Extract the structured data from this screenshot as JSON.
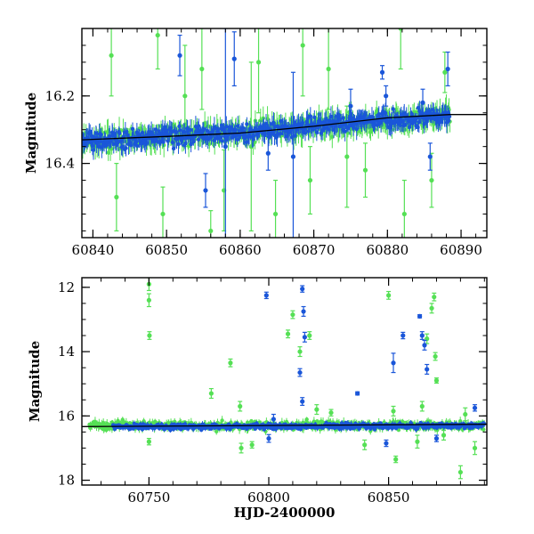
{
  "chart_data": [
    {
      "type": "scatter",
      "title": "",
      "xlabel": "",
      "ylabel": "Magnitude",
      "xlim": [
        60838.5,
        60893.5
      ],
      "ylim": [
        16.62,
        16.0
      ],
      "y_inverted": true,
      "x_ticks": [
        60840,
        60850,
        60860,
        60870,
        60880,
        60890
      ],
      "x_tick_labels": [
        "60840",
        "60850",
        "60860",
        "60870",
        "60880",
        "60890"
      ],
      "y_ticks": [
        16.2,
        16.4
      ],
      "y_tick_labels": [
        "16.2",
        "16.4"
      ],
      "grid": false,
      "series": [
        {
          "color": "#55e055",
          "marker": "dot-with-errorbar",
          "baseline": [
            [
              60838.5,
              16.335
            ],
            [
              60850,
              16.32
            ],
            [
              60860,
              16.31
            ],
            [
              60870,
              16.29
            ],
            [
              60880,
              16.27
            ],
            [
              60888.5,
              16.26
            ]
          ],
          "x_range": [
            60838.5,
            60888.5
          ],
          "spread": 0.03,
          "outliers": [
            {
              "x": 60842.5,
              "y": 16.08,
              "err": 0.12
            },
            {
              "x": 60843.2,
              "y": 16.5,
              "err": 0.1
            },
            {
              "x": 60848.8,
              "y": 16.02,
              "err": 0.1
            },
            {
              "x": 60849.5,
              "y": 16.55,
              "err": 0.08
            },
            {
              "x": 60852.5,
              "y": 16.2,
              "err": 0.15
            },
            {
              "x": 60854.8,
              "y": 16.12,
              "err": 0.12
            },
            {
              "x": 60856.0,
              "y": 16.6,
              "err": 0.06
            },
            {
              "x": 60857.8,
              "y": 16.48,
              "err": 0.12
            },
            {
              "x": 60861.5,
              "y": 16.35,
              "err": 0.25
            },
            {
              "x": 60862.5,
              "y": 16.1,
              "err": 0.15
            },
            {
              "x": 60864.8,
              "y": 16.55,
              "err": 0.1
            },
            {
              "x": 60868.5,
              "y": 16.05,
              "err": 0.15
            },
            {
              "x": 60869.5,
              "y": 16.45,
              "err": 0.1
            },
            {
              "x": 60872.0,
              "y": 16.12,
              "err": 0.12
            },
            {
              "x": 60874.5,
              "y": 16.38,
              "err": 0.15
            },
            {
              "x": 60877.0,
              "y": 16.42,
              "err": 0.08
            },
            {
              "x": 60881.8,
              "y": 16.0,
              "err": 0.12
            },
            {
              "x": 60882.3,
              "y": 16.55,
              "err": 0.1
            },
            {
              "x": 60886.0,
              "y": 16.45,
              "err": 0.08
            },
            {
              "x": 60887.8,
              "y": 16.13,
              "err": 0.06
            }
          ]
        },
        {
          "color": "#1a56d9",
          "marker": "dot-with-errorbar",
          "baseline": [
            [
              60838.5,
              16.335
            ],
            [
              60850,
              16.32
            ],
            [
              60860,
              16.31
            ],
            [
              60870,
              16.29
            ],
            [
              60880,
              16.27
            ],
            [
              60888.5,
              16.26
            ]
          ],
          "x_range": [
            60838.5,
            60888.5
          ],
          "spread": 0.025,
          "outliers": [
            {
              "x": 60851.8,
              "y": 16.08,
              "err": 0.06
            },
            {
              "x": 60855.3,
              "y": 16.48,
              "err": 0.05
            },
            {
              "x": 60858.0,
              "y": 16.35,
              "err": 0.35
            },
            {
              "x": 60859.2,
              "y": 16.09,
              "err": 0.08
            },
            {
              "x": 60863.8,
              "y": 16.37,
              "err": 0.05
            },
            {
              "x": 60867.2,
              "y": 16.38,
              "err": 0.25
            },
            {
              "x": 60875.0,
              "y": 16.23,
              "err": 0.05
            },
            {
              "x": 60879.3,
              "y": 16.13,
              "err": 0.02
            },
            {
              "x": 60879.8,
              "y": 16.2,
              "err": 0.03
            },
            {
              "x": 60884.8,
              "y": 16.22,
              "err": 0.04
            },
            {
              "x": 60885.8,
              "y": 16.38,
              "err": 0.04
            },
            {
              "x": 60888.2,
              "y": 16.12,
              "err": 0.05
            }
          ]
        }
      ],
      "trend_line": {
        "color": "#000000",
        "points": [
          [
            60838.5,
            16.33
          ],
          [
            60850,
            16.32
          ],
          [
            60860,
            16.31
          ],
          [
            60870,
            16.29
          ],
          [
            60880,
            16.265
          ],
          [
            60888.5,
            16.255
          ],
          [
            60893.5,
            16.255
          ]
        ]
      }
    },
    {
      "type": "scatter",
      "title": "",
      "xlabel": "HJD-2400000",
      "ylabel": "Magnitude",
      "xlim": [
        60722,
        60891
      ],
      "ylim": [
        18.15,
        11.7
      ],
      "y_inverted": true,
      "x_ticks": [
        60750,
        60800,
        60850
      ],
      "x_tick_labels": [
        "60750",
        "60800",
        "60850"
      ],
      "y_ticks": [
        12,
        14,
        16,
        18
      ],
      "y_tick_labels": [
        "12",
        "14",
        "16",
        "18"
      ],
      "grid": false,
      "series": [
        {
          "color": "#55e055",
          "marker": "dot-with-errorbar",
          "baseline": [
            [
              60725,
              16.3
            ],
            [
              60890,
              16.3
            ]
          ],
          "x_range": [
            60725,
            60890
          ],
          "spread": 0.12,
          "outliers": [
            {
              "x": 60750.0,
              "y": 11.9,
              "err": 0.2
            },
            {
              "x": 60750.0,
              "y": 12.4,
              "err": 0.2
            },
            {
              "x": 60750.2,
              "y": 13.5,
              "err": 0.12
            },
            {
              "x": 60750.0,
              "y": 16.8,
              "err": 0.1
            },
            {
              "x": 60776.0,
              "y": 15.3,
              "err": 0.15
            },
            {
              "x": 60784.0,
              "y": 14.35,
              "err": 0.12
            },
            {
              "x": 60788.0,
              "y": 15.7,
              "err": 0.15
            },
            {
              "x": 60788.5,
              "y": 17.0,
              "err": 0.15
            },
            {
              "x": 60793.0,
              "y": 16.9,
              "err": 0.1
            },
            {
              "x": 60808.0,
              "y": 13.45,
              "err": 0.12
            },
            {
              "x": 60810.0,
              "y": 12.85,
              "err": 0.12
            },
            {
              "x": 60813.0,
              "y": 14.0,
              "err": 0.15
            },
            {
              "x": 60817.0,
              "y": 13.5,
              "err": 0.12
            },
            {
              "x": 60820.0,
              "y": 15.8,
              "err": 0.15
            },
            {
              "x": 60826.0,
              "y": 15.9,
              "err": 0.1
            },
            {
              "x": 60840.0,
              "y": 16.9,
              "err": 0.15
            },
            {
              "x": 60850.0,
              "y": 12.25,
              "err": 0.12
            },
            {
              "x": 60852.0,
              "y": 15.85,
              "err": 0.15
            },
            {
              "x": 60853.0,
              "y": 17.35,
              "err": 0.1
            },
            {
              "x": 60862.0,
              "y": 16.8,
              "err": 0.2
            },
            {
              "x": 60864.0,
              "y": 15.7,
              "err": 0.15
            },
            {
              "x": 60866.0,
              "y": 13.6,
              "err": 0.15
            },
            {
              "x": 60868.0,
              "y": 12.65,
              "err": 0.15
            },
            {
              "x": 60869.0,
              "y": 12.3,
              "err": 0.12
            },
            {
              "x": 60869.5,
              "y": 14.15,
              "err": 0.12
            },
            {
              "x": 60870.0,
              "y": 14.9,
              "err": 0.08
            },
            {
              "x": 60873.0,
              "y": 16.6,
              "err": 0.15
            },
            {
              "x": 60880.0,
              "y": 17.75,
              "err": 0.2
            },
            {
              "x": 60882.0,
              "y": 15.95,
              "err": 0.2
            },
            {
              "x": 60886.0,
              "y": 17.0,
              "err": 0.2
            }
          ]
        },
        {
          "color": "#1a56d9",
          "marker": "dot-with-errorbar",
          "baseline": [
            [
              60725,
              16.35
            ],
            [
              60890,
              16.3
            ]
          ],
          "x_range": [
            60735,
            60890
          ],
          "spread": 0.08,
          "outliers": [
            {
              "x": 60799.0,
              "y": 12.25,
              "err": 0.1
            },
            {
              "x": 60800.0,
              "y": 16.7,
              "err": 0.12
            },
            {
              "x": 60813.0,
              "y": 14.65,
              "err": 0.12
            },
            {
              "x": 60814.0,
              "y": 12.05,
              "err": 0.1
            },
            {
              "x": 60814.5,
              "y": 12.75,
              "err": 0.15
            },
            {
              "x": 60815.0,
              "y": 13.55,
              "err": 0.15
            },
            {
              "x": 60814.0,
              "y": 15.55,
              "err": 0.12
            },
            {
              "x": 60802.0,
              "y": 16.1,
              "err": 0.15
            },
            {
              "x": 60837.0,
              "y": 15.3,
              "err": 0.05
            },
            {
              "x": 60849.0,
              "y": 16.85,
              "err": 0.1
            },
            {
              "x": 60852.0,
              "y": 14.35,
              "err": 0.3
            },
            {
              "x": 60856.0,
              "y": 13.5,
              "err": 0.1
            },
            {
              "x": 60863.0,
              "y": 12.9,
              "err": 0.05
            },
            {
              "x": 60864.0,
              "y": 13.5,
              "err": 0.12
            },
            {
              "x": 60865.0,
              "y": 13.8,
              "err": 0.15
            },
            {
              "x": 60866.0,
              "y": 14.55,
              "err": 0.15
            },
            {
              "x": 60886.0,
              "y": 15.75,
              "err": 0.1
            },
            {
              "x": 60870.0,
              "y": 16.7,
              "err": 0.1
            }
          ]
        }
      ],
      "trend_line": {
        "color": "#000000",
        "points": [
          [
            60722,
            16.33
          ],
          [
            60891,
            16.26
          ]
        ]
      }
    }
  ]
}
